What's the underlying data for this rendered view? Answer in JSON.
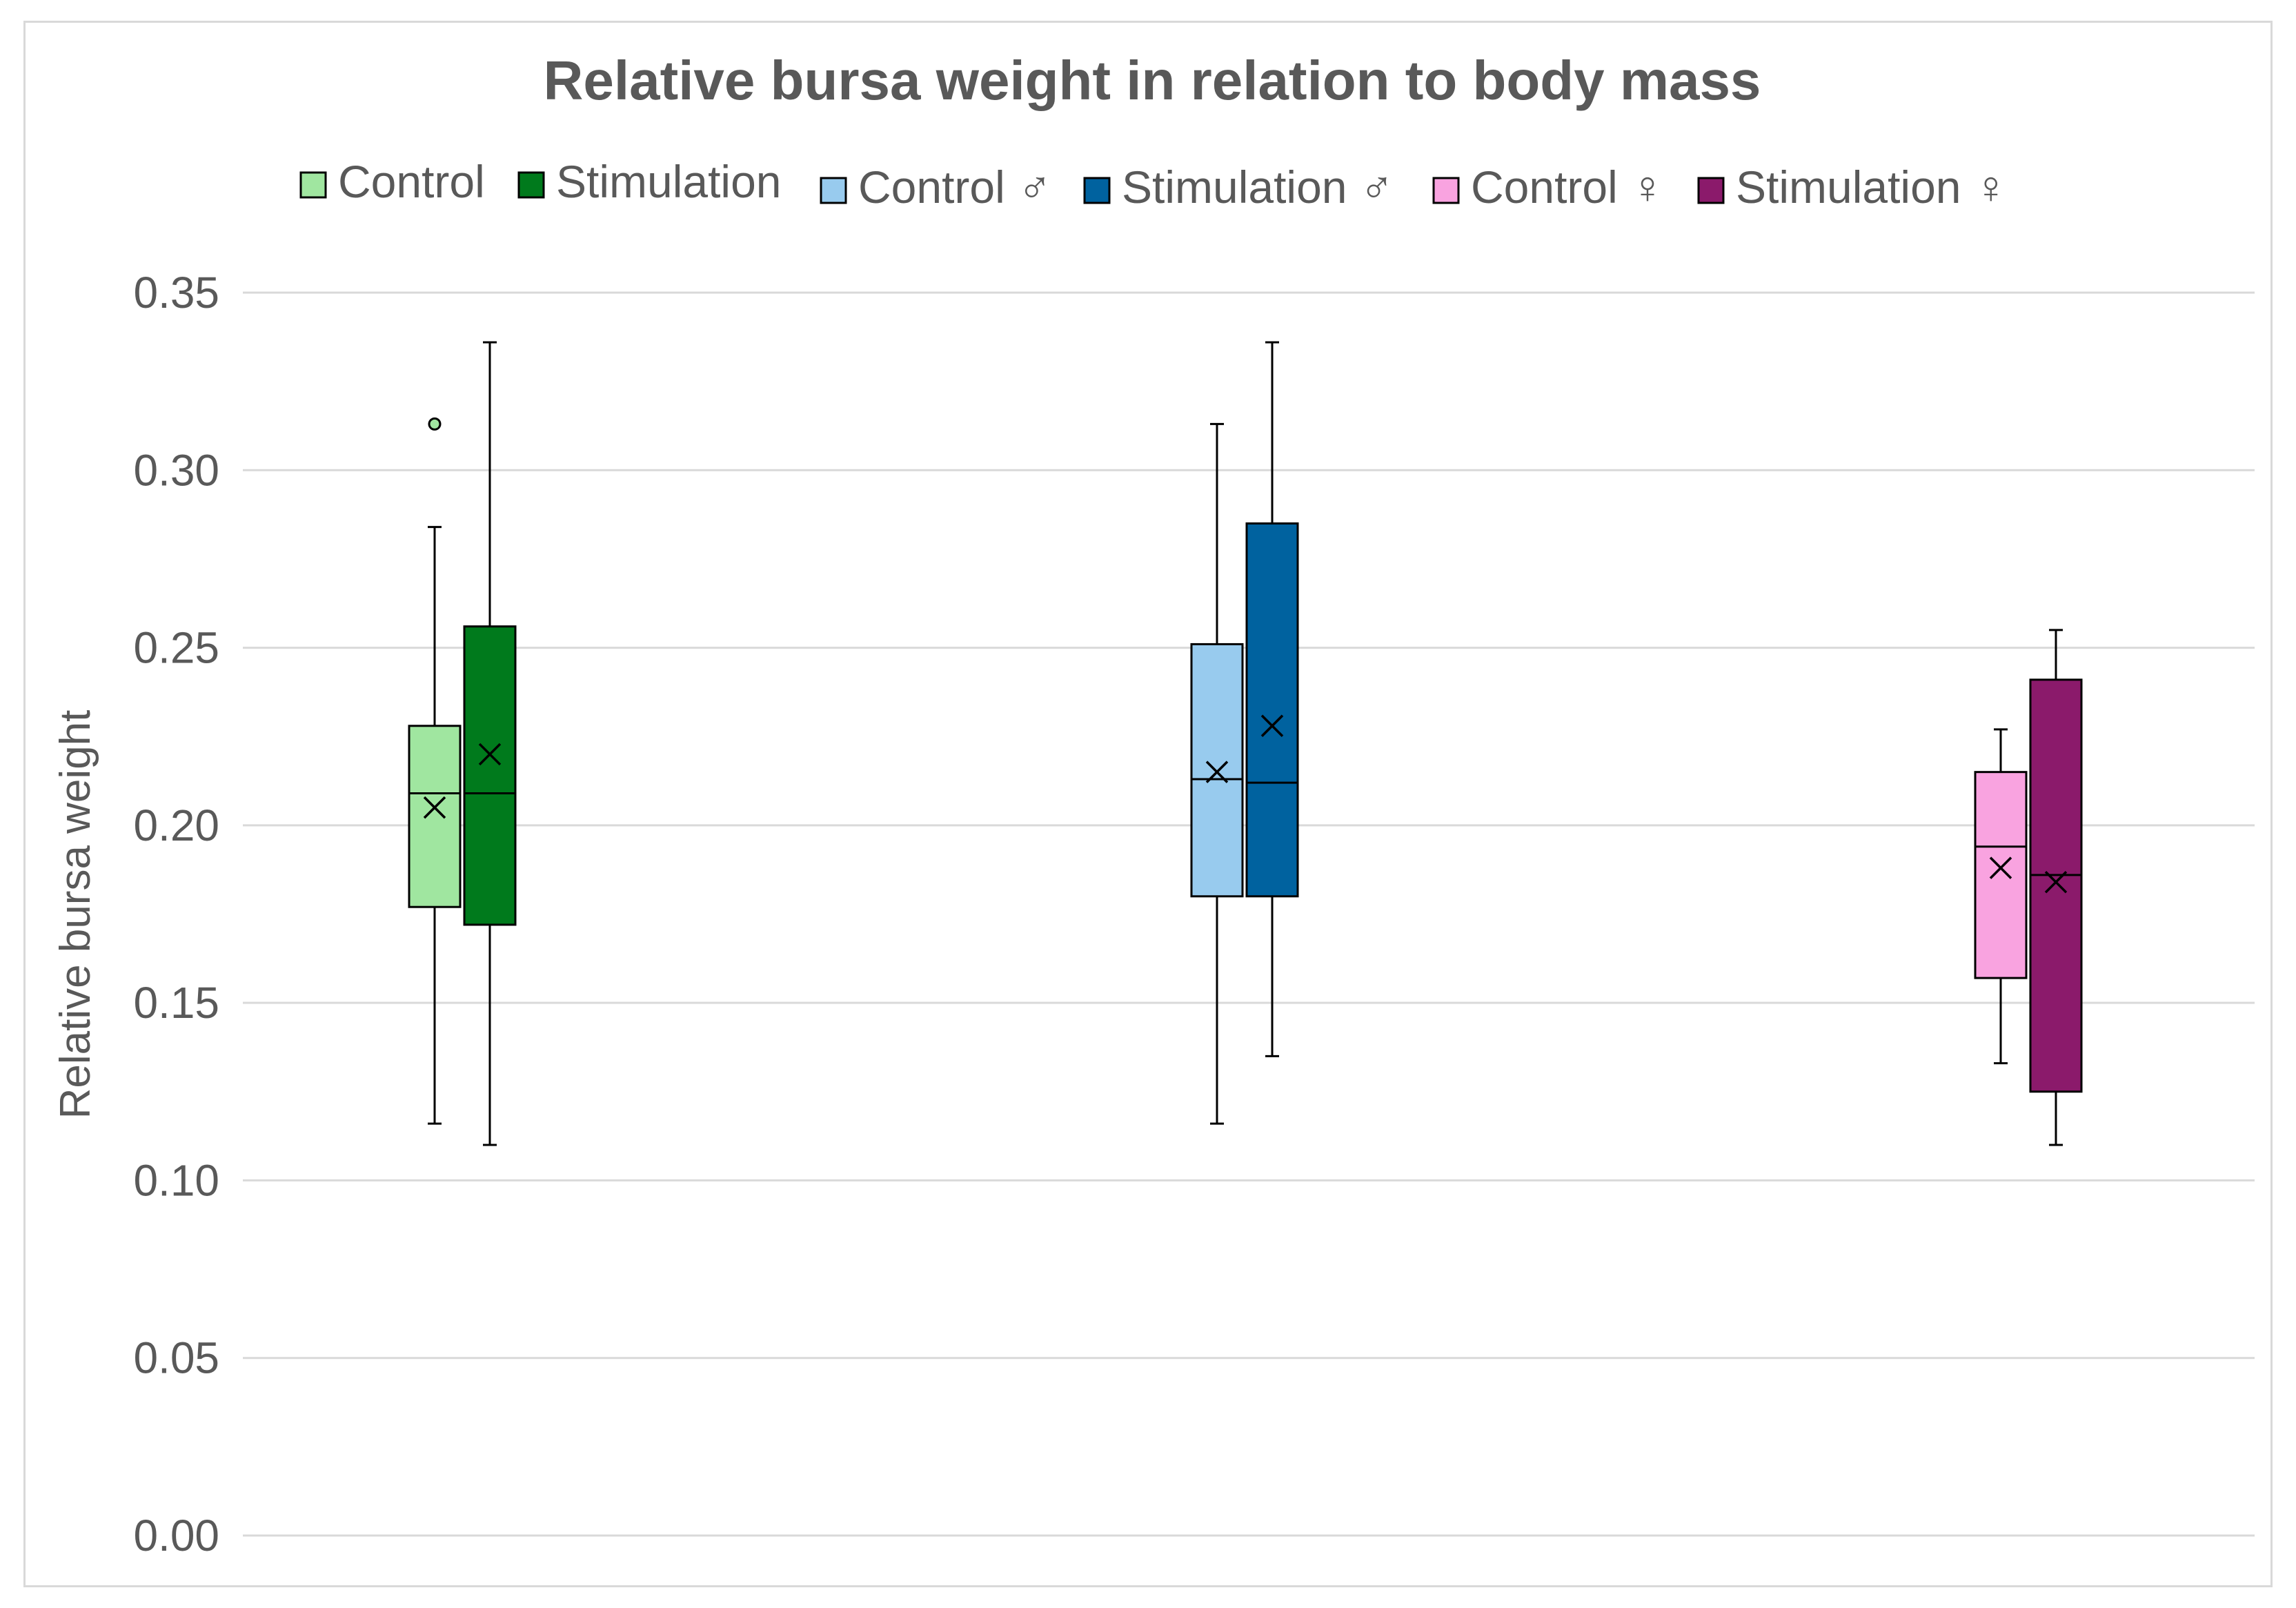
{
  "chart_data": {
    "type": "boxplot",
    "title": "Relative bursa weight in relation to body mass",
    "ylabel": "Relative bursa weight",
    "ylim": [
      0,
      0.35
    ],
    "yticks": [
      "0.00",
      "0.05",
      "0.10",
      "0.15",
      "0.20",
      "0.25",
      "0.30",
      "0.35"
    ],
    "ytick_values": [
      0,
      0.05,
      0.1,
      0.15,
      0.2,
      0.25,
      0.3,
      0.35
    ],
    "grid": true,
    "legend_position": "top",
    "legend": [
      {
        "label": "Control",
        "color": "#a0e6a0"
      },
      {
        "label": "Stimulation",
        "color": "#007a1c"
      },
      {
        "label": "Control ♂",
        "color": "#98cbee"
      },
      {
        "label": "Stimulation ♂",
        "color": "#00629f"
      },
      {
        "label": "Control ♀",
        "color": "#f9a3e0"
      },
      {
        "label": "Stimulation ♀",
        "color": "#8b1a6b"
      }
    ],
    "series": [
      {
        "name": "Control",
        "color": "#a0e6a0",
        "group": 0,
        "min": 0.116,
        "q1": 0.177,
        "median": 0.209,
        "q3": 0.228,
        "max": 0.284,
        "mean": 0.205,
        "outliers": [
          0.313
        ]
      },
      {
        "name": "Stimulation",
        "color": "#007a1c",
        "group": 0,
        "min": 0.11,
        "q1": 0.172,
        "median": 0.209,
        "q3": 0.256,
        "max": 0.336,
        "mean": 0.22,
        "outliers": []
      },
      {
        "name": "Control ♂",
        "color": "#98cbee",
        "group": 1,
        "min": 0.116,
        "q1": 0.18,
        "median": 0.213,
        "q3": 0.251,
        "max": 0.313,
        "mean": 0.215,
        "outliers": []
      },
      {
        "name": "Stimulation ♂",
        "color": "#00629f",
        "group": 1,
        "min": 0.135,
        "q1": 0.18,
        "median": 0.212,
        "q3": 0.285,
        "max": 0.336,
        "mean": 0.228,
        "outliers": []
      },
      {
        "name": "Control ♀",
        "color": "#f9a3e0",
        "group": 2,
        "min": 0.133,
        "q1": 0.157,
        "median": 0.194,
        "q3": 0.215,
        "max": 0.227,
        "mean": 0.188,
        "outliers": []
      },
      {
        "name": "Stimulation ♀",
        "color": "#8b1a6b",
        "group": 2,
        "min": 0.11,
        "q1": 0.125,
        "median": 0.186,
        "q3": 0.241,
        "max": 0.255,
        "mean": 0.184,
        "outliers": []
      }
    ]
  }
}
